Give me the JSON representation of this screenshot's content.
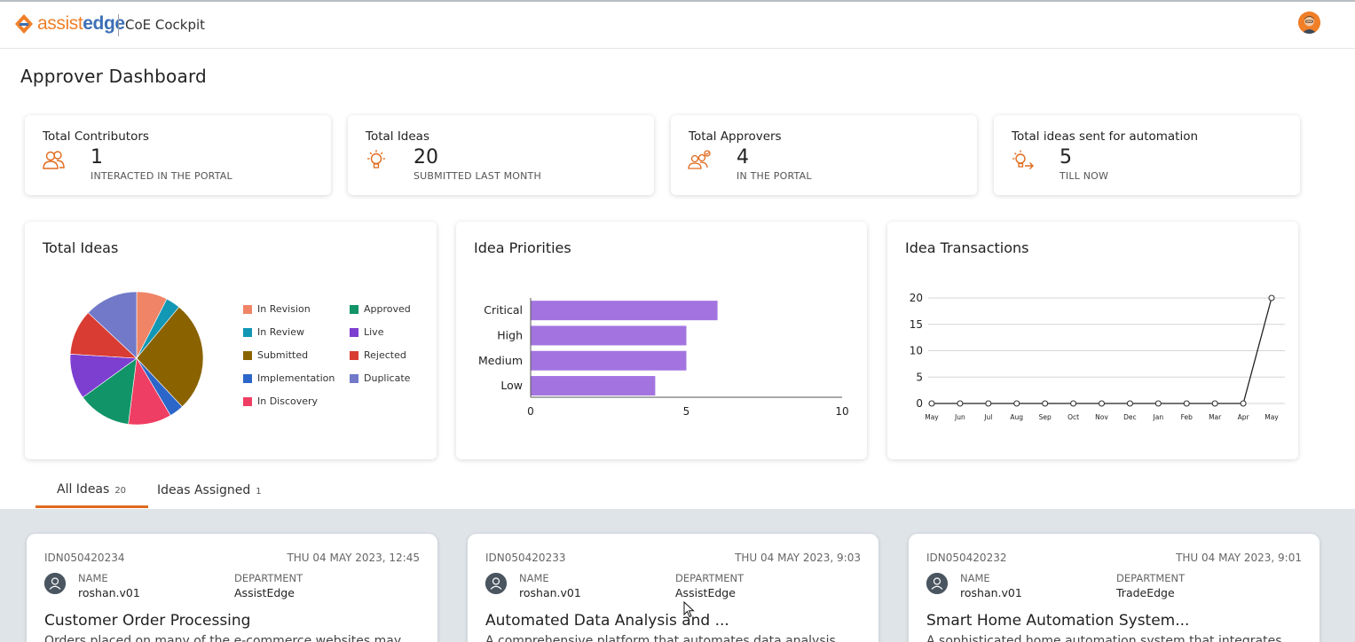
{
  "brand": {
    "logo_a": "assist",
    "logo_b": "edge",
    "app_name": "CoE Cockpit"
  },
  "page_title": "Approver Dashboard",
  "stats": [
    {
      "title": "Total Contributors",
      "value": "1",
      "sub": "INTERACTED IN THE PORTAL",
      "icon": "users-icon"
    },
    {
      "title": "Total Ideas",
      "value": "20",
      "sub": "SUBMITTED LAST MONTH",
      "icon": "lightbulb-icon"
    },
    {
      "title": "Total Approvers",
      "value": "4",
      "sub": "IN THE PORTAL",
      "icon": "approvers-icon"
    },
    {
      "title": "Total ideas sent for automation",
      "value": "5",
      "sub": "TILL NOW",
      "icon": "automation-bulb-icon"
    }
  ],
  "panels": {
    "total_ideas": "Total Ideas",
    "priorities": "Idea Priorities",
    "transactions": "Idea Transactions"
  },
  "colors": {
    "accent": "#e06a1c",
    "bar": "#a374e0",
    "brand_orange": "#f07f28",
    "brand_blue": "#3d6fb6"
  },
  "chart_data": [
    {
      "type": "pie",
      "title": "Total Ideas",
      "legend": [
        {
          "label": "In Revision",
          "color": "#ef8467"
        },
        {
          "label": "Approved",
          "color": "#119467"
        },
        {
          "label": "In Review",
          "color": "#1297b4"
        },
        {
          "label": "Live",
          "color": "#7d3fd0"
        },
        {
          "label": "Submitted",
          "color": "#8a6300"
        },
        {
          "label": "Rejected",
          "color": "#d93c32"
        },
        {
          "label": "Implementation",
          "color": "#2c66c9"
        },
        {
          "label": "Duplicate",
          "color": "#7179c8"
        },
        {
          "label": "In Discovery",
          "color": "#ef3e63"
        }
      ],
      "slices": [
        {
          "label": "In Revision",
          "value": 1.5,
          "color": "#ef8467"
        },
        {
          "label": "In Review",
          "value": 0.7,
          "color": "#1297b4"
        },
        {
          "label": "Submitted",
          "value": 5.4,
          "color": "#8a6300"
        },
        {
          "label": "Implementation",
          "value": 0.7,
          "color": "#2c66c9"
        },
        {
          "label": "In Discovery",
          "value": 2.1,
          "color": "#ef3e63"
        },
        {
          "label": "Approved",
          "value": 2.6,
          "color": "#119467"
        },
        {
          "label": "Live",
          "value": 2.2,
          "color": "#7d3fd0"
        },
        {
          "label": "Rejected",
          "value": 2.2,
          "color": "#d93c32"
        },
        {
          "label": "Duplicate",
          "value": 2.6,
          "color": "#7179c8"
        }
      ]
    },
    {
      "type": "bar",
      "orientation": "horizontal",
      "title": "Idea Priorities",
      "categories": [
        "Critical",
        "High",
        "Medium",
        "Low"
      ],
      "values": [
        6,
        5,
        5,
        4
      ],
      "xlim": [
        0,
        10
      ],
      "xticks": [
        "0",
        "5",
        "10"
      ],
      "color": "#a374e0"
    },
    {
      "type": "line",
      "title": "Idea Transactions",
      "x": [
        "May",
        "Jun",
        "Jul",
        "Aug",
        "Sep",
        "Oct",
        "Nov",
        "Dec",
        "Jan",
        "Feb",
        "Mar",
        "Apr",
        "May"
      ],
      "values": [
        0,
        0,
        0,
        0,
        0,
        0,
        0,
        0,
        0,
        0,
        0,
        0,
        20
      ],
      "ylim": [
        0,
        20
      ],
      "yticks": [
        "0",
        "5",
        "10",
        "15",
        "20"
      ],
      "grid": true
    }
  ],
  "tabs": [
    {
      "label": "All Ideas",
      "count": "20"
    },
    {
      "label": "Ideas Assigned",
      "count": "1"
    }
  ],
  "cards": [
    {
      "id": "IDN050420234",
      "date": "THU 04 MAY 2023, 12:45",
      "name_label": "NAME",
      "name": "roshan.v01",
      "dept_label": "DEPARTMENT",
      "dept": "AssistEdge",
      "title": "Customer Order Processing",
      "desc": "Orders placed on many of the e-commerce websites may"
    },
    {
      "id": "IDN050420233",
      "date": "THU 04 MAY 2023, 9:03",
      "name_label": "NAME",
      "name": "roshan.v01",
      "dept_label": "DEPARTMENT",
      "dept": "AssistEdge",
      "title": "Automated Data Analysis and ...",
      "desc": "A comprehensive platform that automates data analysis"
    },
    {
      "id": "IDN050420232",
      "date": "THU 04 MAY 2023, 9:01",
      "name_label": "NAME",
      "name": "roshan.v01",
      "dept_label": "DEPARTMENT",
      "dept": "TradeEdge",
      "title": "Smart Home Automation System...",
      "desc": "A sophisticated home automation system that integrates"
    }
  ]
}
